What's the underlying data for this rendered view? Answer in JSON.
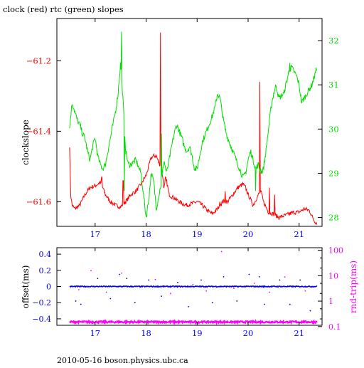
{
  "title": "clock (red) rtc (green) slopes",
  "footer": "2010-05-16 boson.physics.ubc.ca",
  "colors": {
    "clock": "#ff0000",
    "rtc": "#00dd00",
    "offset": "#0000ff",
    "rndtrip": "#ff00ff",
    "axis": "#000000"
  },
  "chart_data": [
    {
      "type": "line",
      "title": "clock (red) rtc (green) slopes",
      "ylabel": "clockslope",
      "x_ticks": [
        "17",
        "18",
        "19",
        "20",
        "21"
      ],
      "xlim": [
        16.25,
        21.45
      ],
      "ylim": [
        -61.67,
        -61.08
      ],
      "y_ticks": [
        "-61.2",
        "-61.4",
        "-61.6"
      ],
      "y2lim": [
        27.8,
        32.5
      ],
      "y2_ticks": [
        "28",
        "29",
        "30",
        "31",
        "32"
      ],
      "series": [
        {
          "name": "clock",
          "axis": "left",
          "x": [
            16.5,
            16.52,
            16.55,
            16.6,
            16.7,
            16.8,
            16.9,
            17.0,
            17.1,
            17.15,
            17.2,
            17.3,
            17.4,
            17.5,
            17.6,
            17.7,
            17.8,
            17.9,
            18.0,
            18.05,
            18.1,
            18.15,
            18.2,
            18.25,
            18.3,
            18.35,
            18.4,
            18.45,
            18.5,
            18.6,
            18.7,
            18.8,
            18.9,
            19.0,
            19.1,
            19.2,
            19.3,
            19.4,
            19.5,
            19.6,
            19.7,
            19.8,
            19.9,
            19.95,
            20.0,
            20.05,
            20.1,
            20.2,
            20.25,
            20.3,
            20.4,
            20.5,
            20.6,
            20.7,
            20.8,
            20.9,
            21.0,
            21.1,
            21.2,
            21.3,
            21.35
          ],
          "values": [
            -61.44,
            -61.58,
            -61.61,
            -61.62,
            -61.61,
            -61.58,
            -61.56,
            -61.555,
            -61.545,
            -61.56,
            -61.58,
            -61.6,
            -61.61,
            -61.615,
            -61.6,
            -61.58,
            -61.57,
            -61.55,
            -61.525,
            -61.5,
            -61.475,
            -61.47,
            -61.47,
            -61.49,
            -61.5,
            -61.56,
            -61.54,
            -61.58,
            -61.585,
            -61.595,
            -61.605,
            -61.61,
            -61.605,
            -61.6,
            -61.61,
            -61.625,
            -61.635,
            -61.62,
            -61.6,
            -61.6,
            -61.58,
            -61.56,
            -61.55,
            -61.56,
            -61.58,
            -61.595,
            -61.61,
            -61.58,
            -61.57,
            -61.6,
            -61.63,
            -61.635,
            -61.645,
            -61.64,
            -61.635,
            -61.63,
            -61.63,
            -61.62,
            -61.625,
            -61.655,
            -61.66
          ],
          "spikes": [
            {
              "x": 17.13,
              "y": -61.53
            },
            {
              "x": 17.55,
              "y": -61.54
            },
            {
              "x": 18.28,
              "y": -61.12
            },
            {
              "x": 18.38,
              "y": -61.53
            },
            {
              "x": 19.45,
              "y": -61.6
            },
            {
              "x": 19.55,
              "y": -61.57
            },
            {
              "x": 20.23,
              "y": -61.26
            },
            {
              "x": 20.42,
              "y": -61.56
            },
            {
              "x": 20.52,
              "y": -61.58
            }
          ]
        },
        {
          "name": "rtc",
          "axis": "right",
          "x": [
            16.5,
            16.52,
            16.55,
            16.6,
            16.65,
            16.7,
            16.75,
            16.8,
            16.85,
            16.9,
            16.95,
            17.0,
            17.05,
            17.1,
            17.15,
            17.2,
            17.25,
            17.3,
            17.35,
            17.4,
            17.45,
            17.5,
            17.55,
            17.6,
            17.65,
            17.7,
            17.8,
            17.9,
            17.95,
            18.0,
            18.05,
            18.1,
            18.15,
            18.2,
            18.25,
            18.3,
            18.35,
            18.4,
            18.45,
            18.5,
            18.55,
            18.6,
            18.7,
            18.75,
            18.8,
            18.85,
            18.9,
            18.95,
            19.0,
            19.05,
            19.1,
            19.2,
            19.3,
            19.35,
            19.4,
            19.45,
            19.5,
            19.55,
            19.6,
            19.7,
            19.8,
            19.9,
            19.95,
            20.0,
            20.05,
            20.1,
            20.15,
            20.2,
            20.25,
            20.3,
            20.35,
            20.4,
            20.45,
            20.5,
            20.55,
            20.6,
            20.7,
            20.8,
            20.85,
            20.9,
            20.95,
            21.0,
            21.05,
            21.1,
            21.15,
            21.2,
            21.25,
            21.3,
            21.35
          ],
          "values": [
            30.0,
            30.3,
            30.6,
            30.4,
            30.2,
            30.1,
            29.9,
            29.8,
            29.5,
            29.3,
            29.6,
            29.8,
            29.4,
            29.2,
            29.1,
            29.2,
            29.5,
            29.8,
            30.1,
            30.4,
            30.8,
            31.5,
            30.6,
            29.5,
            29.2,
            29.2,
            29.3,
            29.0,
            28.5,
            28.0,
            28.4,
            29.0,
            28.8,
            28.2,
            28.5,
            28.8,
            29.3,
            29.0,
            29.3,
            29.6,
            29.9,
            30.1,
            29.8,
            29.6,
            29.5,
            29.6,
            29.4,
            29.1,
            29.1,
            29.4,
            29.7,
            30.0,
            30.3,
            30.5,
            30.8,
            30.7,
            30.3,
            30.0,
            29.8,
            29.5,
            29.2,
            28.9,
            29.0,
            29.3,
            29.5,
            29.3,
            29.1,
            29.2,
            29.0,
            29.1,
            29.5,
            30.0,
            30.5,
            30.8,
            31.0,
            30.7,
            30.8,
            31.3,
            31.4,
            31.3,
            31.2,
            31.0,
            30.6,
            30.7,
            30.8,
            30.9,
            31.0,
            31.2,
            31.4
          ],
          "spikes": [
            {
              "x": 17.52,
              "y": 32.2
            },
            {
              "x": 17.57,
              "y": 28.6
            },
            {
              "x": 18.3,
              "y": 29.9
            },
            {
              "x": 20.15,
              "y": 28.6
            },
            {
              "x": 20.25,
              "y": 29.1
            },
            {
              "x": 20.82,
              "y": 31.5
            }
          ]
        }
      ]
    },
    {
      "type": "scatter",
      "ylabel": "offset(ms)",
      "y2label": "rnd-trip(ms)",
      "x_ticks": [
        "17",
        "18",
        "19",
        "20",
        "21"
      ],
      "xlim": [
        16.25,
        21.45
      ],
      "ylim": [
        -0.48,
        0.48
      ],
      "y_ticks": [
        "0.4",
        "0.2",
        "0",
        "-0.2",
        "-0.4"
      ],
      "y2lim_log10": [
        -0.95,
        2.1
      ],
      "y2_ticks": [
        "100",
        "10",
        "1",
        "0.1"
      ],
      "series": [
        {
          "name": "offset",
          "axis": "left",
          "baseline": 0.0,
          "x_range": [
            16.5,
            21.35
          ],
          "outliers": [
            {
              "x": 16.62,
              "y": -0.18
            },
            {
              "x": 16.72,
              "y": -0.22
            },
            {
              "x": 17.05,
              "y": 0.1
            },
            {
              "x": 17.3,
              "y": -0.15
            },
            {
              "x": 17.48,
              "y": 0.15
            },
            {
              "x": 17.62,
              "y": 0.1
            },
            {
              "x": 17.78,
              "y": -0.2
            },
            {
              "x": 18.05,
              "y": 0.08
            },
            {
              "x": 18.3,
              "y": -0.12
            },
            {
              "x": 18.62,
              "y": 0.05
            },
            {
              "x": 18.83,
              "y": -0.25
            },
            {
              "x": 19.08,
              "y": 0.08
            },
            {
              "x": 19.3,
              "y": -0.2
            },
            {
              "x": 19.52,
              "y": 0.12
            },
            {
              "x": 19.78,
              "y": -0.18
            },
            {
              "x": 20.02,
              "y": 0.15
            },
            {
              "x": 20.22,
              "y": 0.12
            },
            {
              "x": 20.32,
              "y": -0.22
            },
            {
              "x": 20.62,
              "y": 0.08
            },
            {
              "x": 20.82,
              "y": -0.22
            },
            {
              "x": 21.02,
              "y": 0.08
            },
            {
              "x": 21.22,
              "y": -0.3
            }
          ]
        },
        {
          "name": "rnd-trip",
          "axis": "right",
          "baseline_log10": -0.82,
          "x_range": [
            16.5,
            21.35
          ],
          "outliers": [
            {
              "x": 16.68,
              "y": 0.45
            },
            {
              "x": 16.92,
              "y": 1.2
            },
            {
              "x": 17.22,
              "y": 0.35
            },
            {
              "x": 17.52,
              "y": 1.1
            },
            {
              "x": 17.88,
              "y": 0.55
            },
            {
              "x": 18.18,
              "y": 0.85
            },
            {
              "x": 18.48,
              "y": 0.3
            },
            {
              "x": 18.92,
              "y": 0.65
            },
            {
              "x": 19.18,
              "y": 0.4
            },
            {
              "x": 19.48,
              "y": 1.95
            },
            {
              "x": 19.72,
              "y": 0.5
            },
            {
              "x": 20.12,
              "y": 0.7
            },
            {
              "x": 20.42,
              "y": 0.35
            },
            {
              "x": 20.72,
              "y": 0.95
            },
            {
              "x": 21.12,
              "y": 0.4
            }
          ]
        }
      ]
    }
  ]
}
